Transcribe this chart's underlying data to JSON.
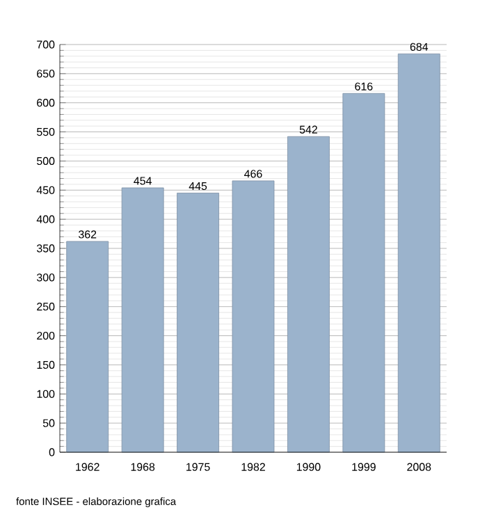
{
  "chart_data": {
    "type": "bar",
    "categories": [
      "1962",
      "1968",
      "1975",
      "1982",
      "1990",
      "1999",
      "2008"
    ],
    "values": [
      362,
      454,
      445,
      466,
      542,
      616,
      684
    ],
    "color": "#9bb3cc",
    "data_labels": true,
    "grid": "y",
    "ylim": [
      0,
      700
    ],
    "yticks": [
      0,
      50,
      100,
      150,
      200,
      250,
      300,
      350,
      400,
      450,
      500,
      550,
      600,
      650,
      700
    ],
    "annotations": [
      "fonte INSEE - elaborazione grafica"
    ]
  }
}
